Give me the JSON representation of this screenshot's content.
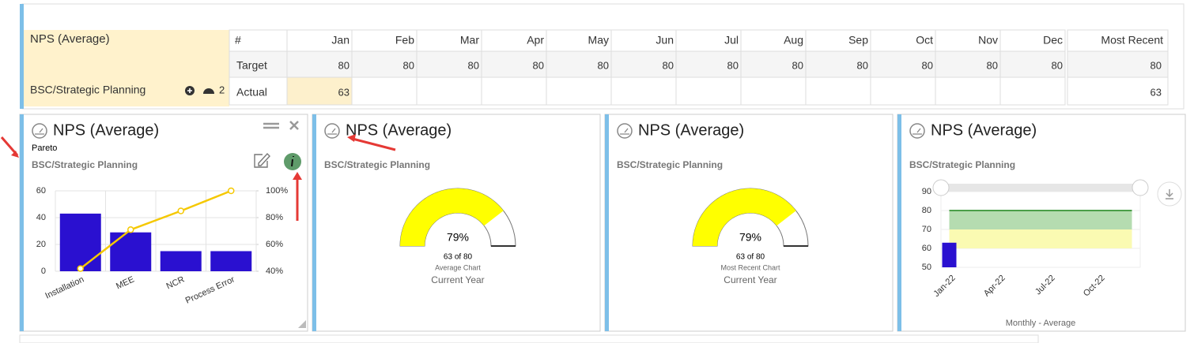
{
  "table": {
    "title": "NPS (Average)",
    "owner": "BSC/Strategic Planning",
    "badge": 2,
    "first_header": "#",
    "months": [
      "Jan",
      "Feb",
      "Mar",
      "Apr",
      "May",
      "Jun",
      "Jul",
      "Aug",
      "Sep",
      "Oct",
      "Nov",
      "Dec"
    ],
    "recent_header": "Most Recent",
    "rows": [
      {
        "label": "Target",
        "values": [
          80,
          80,
          80,
          80,
          80,
          80,
          80,
          80,
          80,
          80,
          80,
          80
        ],
        "most_recent": 80
      },
      {
        "label": "Actual",
        "values": [
          63,
          null,
          null,
          null,
          null,
          null,
          null,
          null,
          null,
          null,
          null,
          null
        ],
        "most_recent": 63
      }
    ]
  },
  "chart_data": [
    {
      "type": "pareto",
      "title": "NPS (Average)",
      "subtitle": "Pareto",
      "owner": "BSC/Strategic Planning",
      "categories": [
        "Installation",
        "MEE",
        "NCR",
        "Process Error"
      ],
      "series": [
        {
          "color": "#2a10d0",
          "values": [
            43,
            29,
            15,
            15
          ]
        },
        {
          "color": "#f5c800",
          "values": [
            42,
            71,
            85,
            100
          ],
          "axis": "y2"
        }
      ],
      "ylim": [
        0,
        60
      ],
      "yticks": [
        0,
        20,
        40,
        60
      ],
      "y2lim": [
        40,
        100
      ],
      "y2ticks": [
        {
          "value": 40,
          "label": "40%"
        },
        {
          "value": 60,
          "label": "60%"
        },
        {
          "value": 80,
          "label": "80%"
        },
        {
          "value": 100,
          "label": "100%"
        }
      ],
      "grid": true
    },
    {
      "type": "gauge",
      "title": "NPS (Average)",
      "owner": "BSC/Strategic Planning",
      "value": 79,
      "value_label": "79%",
      "range": [
        0,
        100
      ],
      "color": "#ffff00",
      "detail": "63 of 80",
      "chart_label": "Average Chart",
      "period": "Current Year"
    },
    {
      "type": "gauge",
      "title": "NPS (Average)",
      "owner": "BSC/Strategic Planning",
      "value": 79,
      "value_label": "79%",
      "range": [
        0,
        100
      ],
      "color": "#ffff00",
      "detail": "63 of 80",
      "chart_label": "Most Recent Chart",
      "period": "Current Year"
    },
    {
      "type": "bar",
      "title": "NPS (Average)",
      "owner": "BSC/Strategic Planning",
      "categories": [
        "Jan-22",
        null,
        null,
        "Apr-22",
        null,
        null,
        "Jul-22",
        null,
        null,
        "Oct-22",
        null,
        null
      ],
      "series": [
        {
          "color": "#2a10d0",
          "values": [
            63,
            null,
            null,
            null,
            null,
            null,
            null,
            null,
            null,
            null,
            null,
            null
          ]
        },
        {
          "color": "#4a9e48",
          "type": "line",
          "values": [
            80,
            80,
            80,
            80,
            80,
            80,
            80,
            80,
            80,
            80,
            80,
            80
          ]
        }
      ],
      "bands": [
        {
          "from": 70,
          "to": 80,
          "color": "#b5dcb0"
        },
        {
          "from": 60,
          "to": 70,
          "color": "#fafab2"
        }
      ],
      "ylim": [
        50,
        90
      ],
      "yticks": [
        50,
        60,
        70,
        80,
        90
      ],
      "grid": true,
      "xlabel": "Monthly - Average"
    }
  ]
}
